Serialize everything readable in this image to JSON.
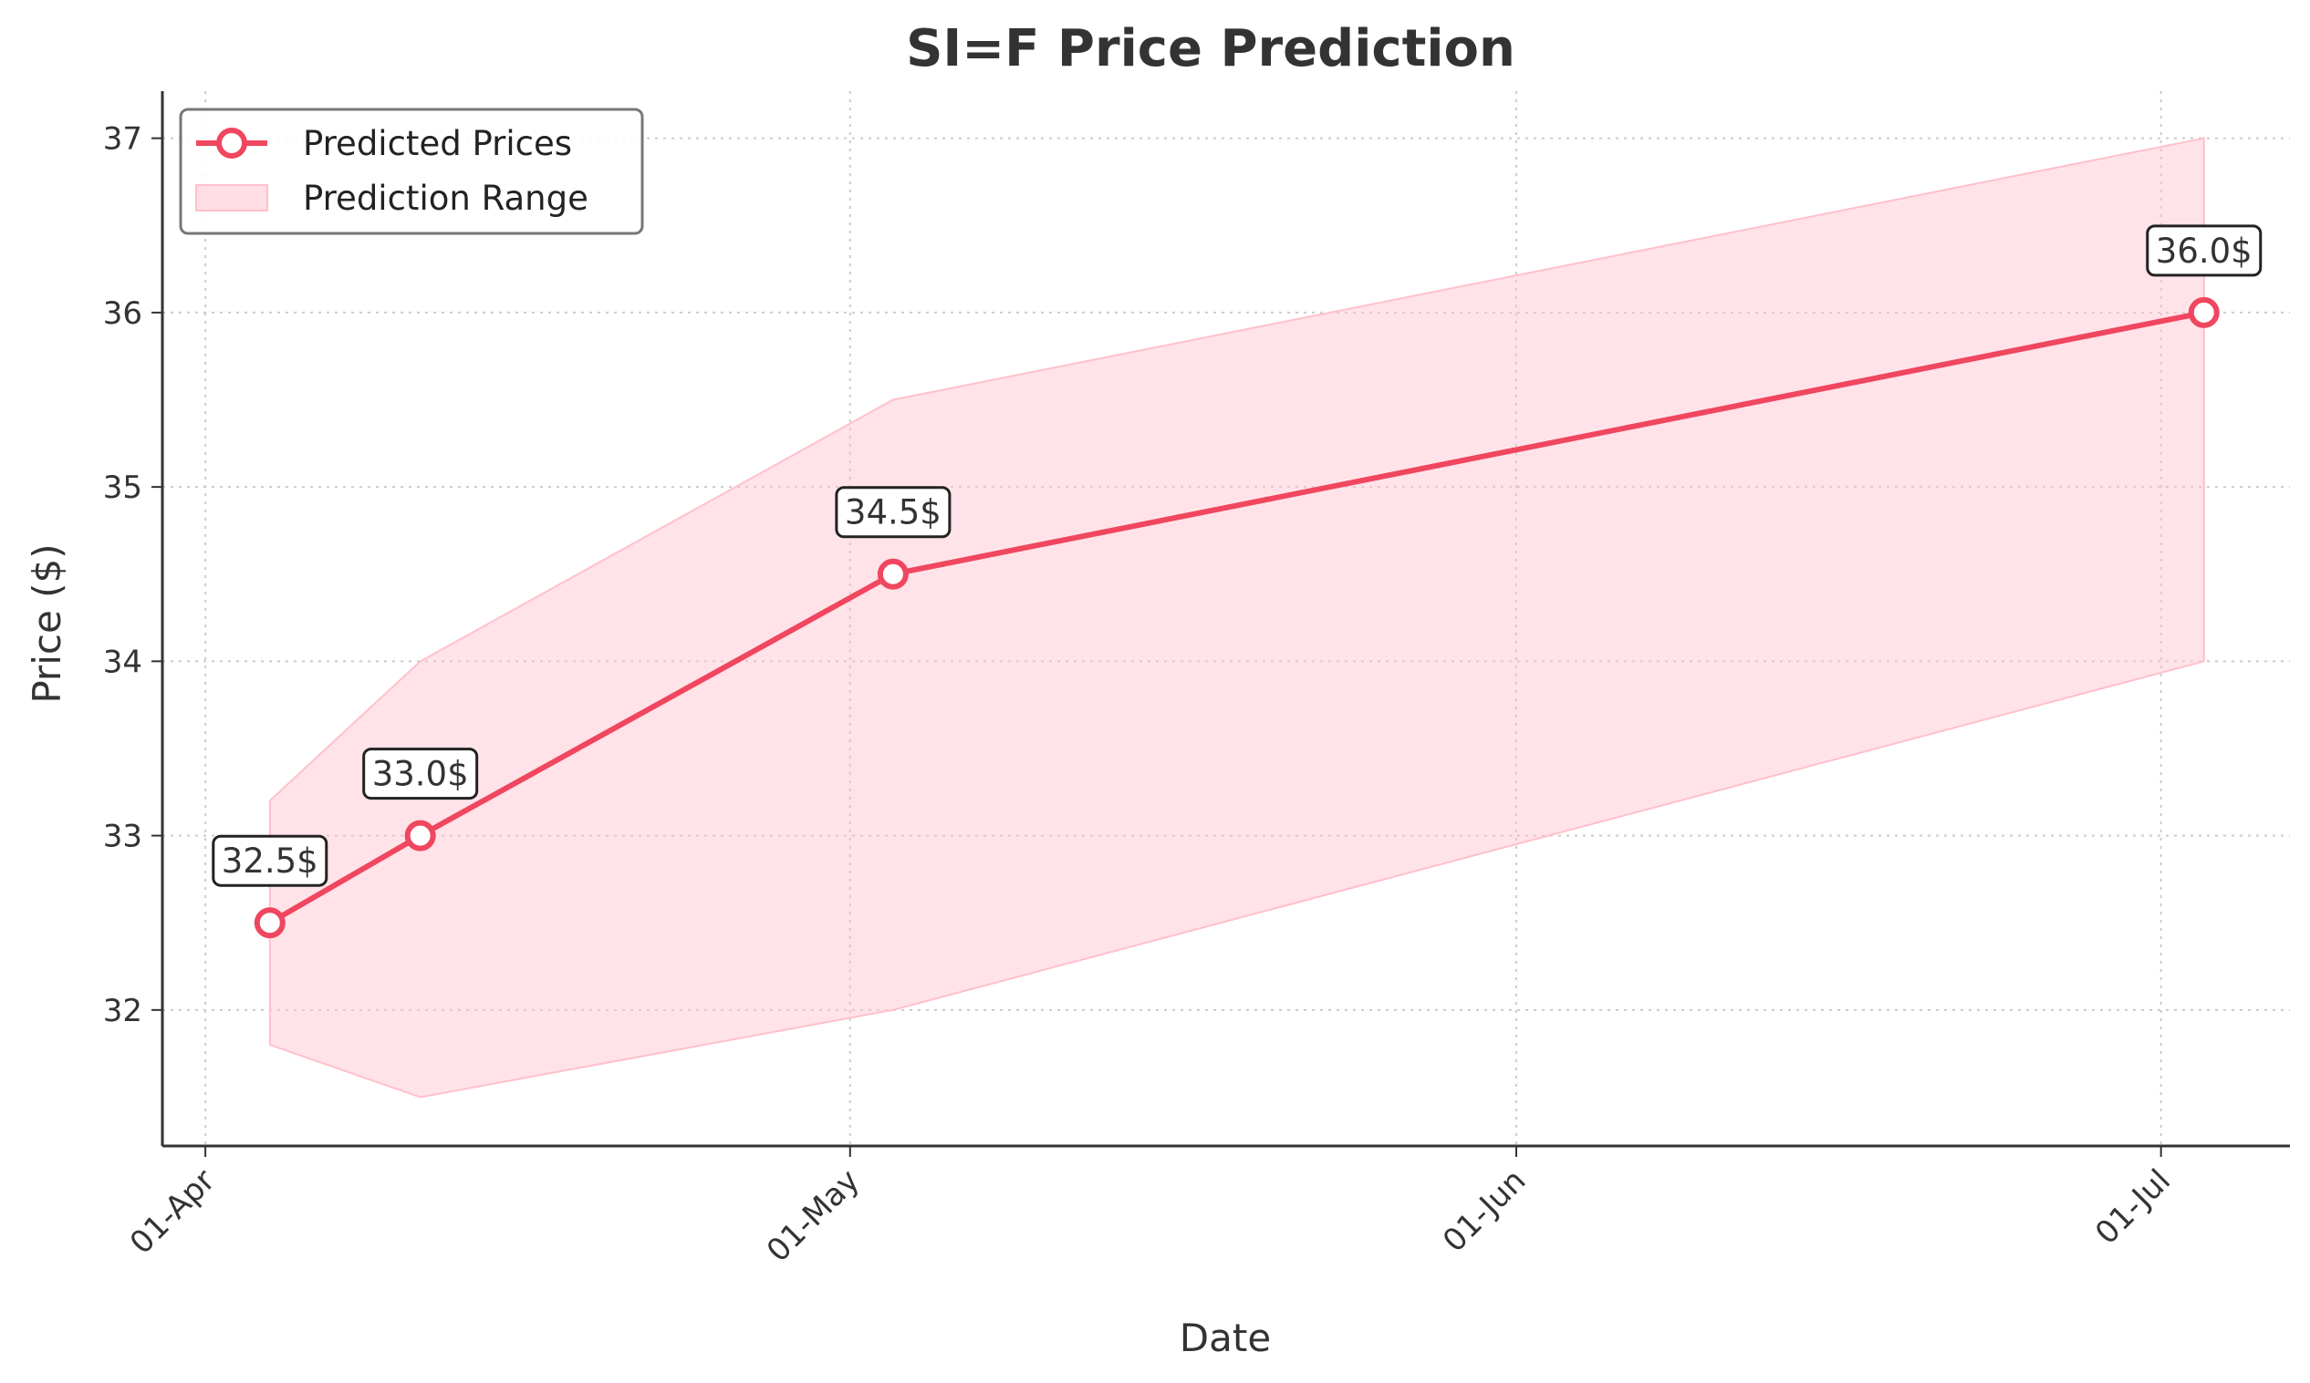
{
  "chart_data": {
    "type": "line",
    "title": "SI=F Price Prediction",
    "xlabel": "Date",
    "ylabel": "Price ($)",
    "x_ticks": [
      {
        "date": "2025-04-01",
        "label": "01-Apr"
      },
      {
        "date": "2025-05-01",
        "label": "01-May"
      },
      {
        "date": "2025-06-01",
        "label": "01-Jun"
      },
      {
        "date": "2025-07-01",
        "label": "01-Jul"
      }
    ],
    "y_ticks": [
      32,
      33,
      34,
      35,
      36,
      37
    ],
    "xlim": [
      "2025-03-30",
      "2025-07-07"
    ],
    "ylim": [
      31.22,
      37.27
    ],
    "grid": true,
    "legend_position": "top-left",
    "series": [
      {
        "name": "Predicted Prices",
        "color": "#f0465f",
        "marker": "open-circle",
        "points": [
          {
            "x": "2025-04-04",
            "y": 32.5,
            "label": "32.5$"
          },
          {
            "x": "2025-04-11",
            "y": 33.0,
            "label": "33.0$"
          },
          {
            "x": "2025-05-03",
            "y": 34.5,
            "label": "34.5$"
          },
          {
            "x": "2025-07-03",
            "y": 36.0,
            "label": "36.0$"
          }
        ]
      }
    ],
    "range": {
      "name": "Prediction Range",
      "color": "#ffc0cb",
      "upper": [
        {
          "x": "2025-04-04",
          "y": 33.2
        },
        {
          "x": "2025-04-11",
          "y": 34.0
        },
        {
          "x": "2025-05-03",
          "y": 35.5
        },
        {
          "x": "2025-07-03",
          "y": 37.0
        }
      ],
      "lower": [
        {
          "x": "2025-04-04",
          "y": 31.8
        },
        {
          "x": "2025-04-11",
          "y": 31.5
        },
        {
          "x": "2025-05-03",
          "y": 32.0
        },
        {
          "x": "2025-07-03",
          "y": 34.0
        }
      ]
    }
  }
}
